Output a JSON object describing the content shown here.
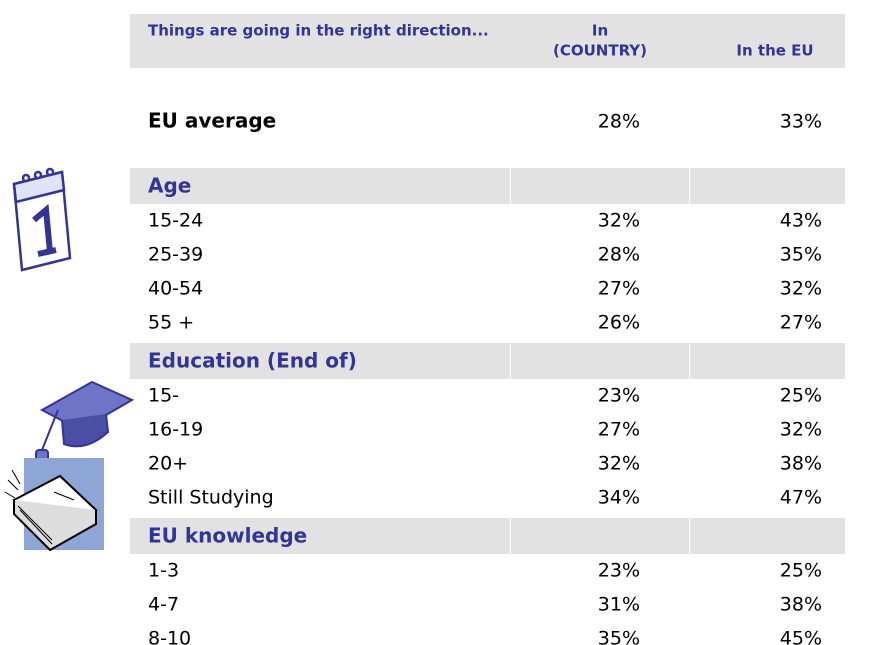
{
  "header": {
    "title": "Things are going in the right direction...",
    "columns": [
      [
        "In",
        "(COUNTRY)"
      ],
      [
        "In the EU"
      ]
    ]
  },
  "average": {
    "label": "EU average",
    "values": [
      "28%",
      "33%"
    ]
  },
  "sections": [
    {
      "title": "Age",
      "rows": [
        {
          "label": "15-24",
          "values": [
            "32%",
            "43%"
          ]
        },
        {
          "label": "25-39",
          "values": [
            "28%",
            "35%"
          ]
        },
        {
          "label": "40-54",
          "values": [
            "27%",
            "32%"
          ]
        },
        {
          "label": "55 +",
          "values": [
            "26%",
            "27%"
          ]
        }
      ]
    },
    {
      "title": "Education (End of)",
      "rows": [
        {
          "label": "15-",
          "values": [
            "23%",
            "25%"
          ]
        },
        {
          "label": "16-19",
          "values": [
            "27%",
            "32%"
          ]
        },
        {
          "label": "20+",
          "values": [
            "32%",
            "38%"
          ]
        },
        {
          "label": "Still Studying",
          "values": [
            "34%",
            "47%"
          ]
        }
      ]
    },
    {
      "title": "EU knowledge",
      "rows": [
        {
          "label": "1-3",
          "values": [
            "23%",
            "25%"
          ]
        },
        {
          "label": "4-7",
          "values": [
            "31%",
            "38%"
          ]
        },
        {
          "label": "8-10",
          "values": [
            "35%",
            "45%"
          ]
        }
      ]
    }
  ]
}
